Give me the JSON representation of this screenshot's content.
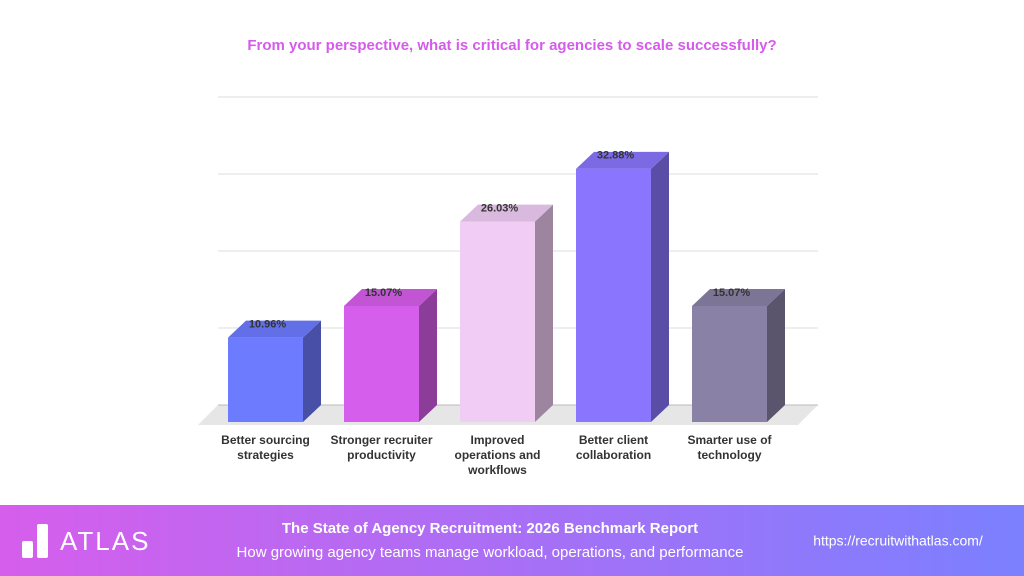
{
  "chart_data": {
    "type": "bar3d",
    "title": "From your perspective, what is critical for agencies to scale successfully?",
    "categories": [
      "Better sourcing strategies",
      "Stronger recruiter productivity",
      "Improved operations and workflows",
      "Better client collaboration",
      "Smarter use of technology"
    ],
    "values": [
      10.96,
      15.07,
      26.03,
      32.88,
      15.07
    ],
    "value_labels": [
      "10.96%",
      "15.07%",
      "26.03%",
      "32.88%",
      "15.07%"
    ],
    "colors": [
      "#6d7bff",
      "#d65eec",
      "#f1cdf6",
      "#8a76fe",
      "#8a82a6"
    ],
    "ylim": [
      0,
      40
    ],
    "yticks": [
      0,
      10,
      20,
      30,
      40
    ],
    "grid": true
  },
  "footer": {
    "logo": "ATLAS",
    "title": "The State of Agency Recruitment: 2026 Benchmark Report",
    "subtitle": "How growing agency teams manage workload, operations, and performance",
    "url": "https://recruitwithatlas.com/"
  }
}
